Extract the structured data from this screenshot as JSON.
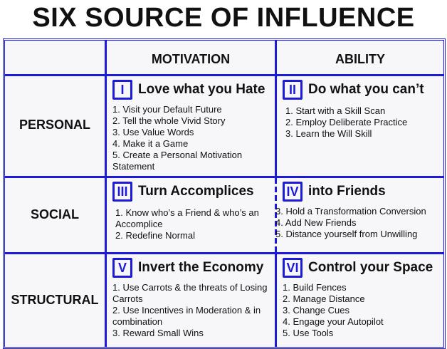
{
  "title": "SIX SOURCE OF INFLUENCE",
  "columns": [
    "MOTIVATION",
    "ABILITY"
  ],
  "rows": [
    "PERSONAL",
    "SOCIAL",
    "STRUCTURAL"
  ],
  "colors": {
    "grid": "#1c1cd8",
    "background": "#f7f7f9"
  },
  "cells": [
    {
      "badge": "I",
      "heading": "Love what you Hate",
      "items": [
        "1. Visit your Default Future",
        "2. Tell the whole Vivid Story",
        "3. Use Value Words",
        "4. Make it a Game",
        "5. Create a Personal Motivation Statement"
      ]
    },
    {
      "badge": "II",
      "heading": "Do what you can’t",
      "items": [
        "1. Start with a Skill Scan",
        "2. Employ Deliberate Practice",
        "3. Learn the Will Skill"
      ]
    },
    {
      "badge": "III",
      "heading": "Turn Accomplices",
      "items": [
        "1. Know who’s a Friend & who’s an Accomplice",
        "2. Redefine Normal"
      ]
    },
    {
      "badge": "IV",
      "heading": "into Friends",
      "items": [
        "3. Hold a Transformation Conversion",
        "4. Add New Friends",
        "5. Distance yourself from Unwilling"
      ]
    },
    {
      "badge": "V",
      "heading": "Invert the Economy",
      "items": [
        "1. Use Carrots & the threats of Losing Carrots",
        "2. Use Incentives in Moderation & in combination",
        "3. Reward Small Wins"
      ]
    },
    {
      "badge": "VI",
      "heading": "Control your Space",
      "items": [
        "1. Build Fences",
        "2. Manage Distance",
        "3. Change Cues",
        "4. Engage your Autopilot",
        "5. Use Tools"
      ]
    }
  ]
}
